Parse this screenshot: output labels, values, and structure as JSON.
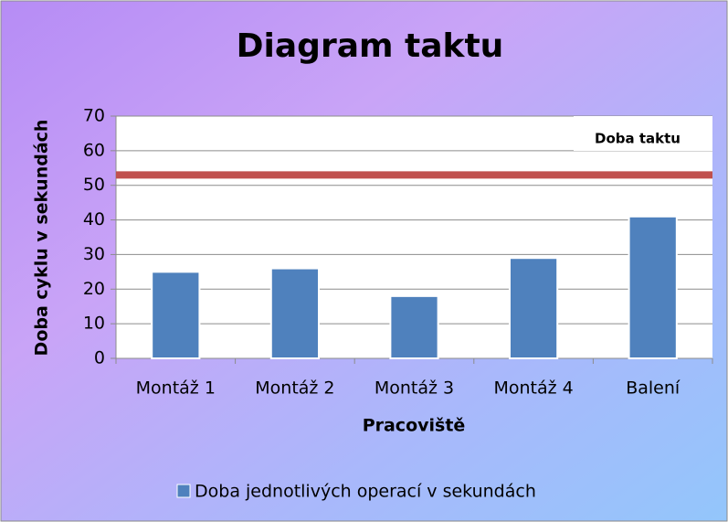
{
  "chart_data": {
    "type": "bar",
    "title": "Diagram taktu",
    "x_label": "Pracoviště",
    "y_label": "Doba cyklu v sekundách",
    "categories": [
      "Montáž 1",
      "Montáž 2",
      "Montáž 3",
      "Montáž 4",
      "Balení"
    ],
    "series": [
      {
        "name": "Doba jednotlivých operací v sekundách",
        "color": "#4f81bd",
        "values": [
          25,
          26,
          18,
          29,
          41
        ]
      }
    ],
    "reference_line": {
      "label": "Doba taktu",
      "value": 53,
      "color": "#c0504d"
    },
    "ylim": [
      0,
      70
    ],
    "yticks": [
      0,
      10,
      20,
      30,
      40,
      50,
      60,
      70
    ],
    "grid": true,
    "legend": "bottom"
  }
}
